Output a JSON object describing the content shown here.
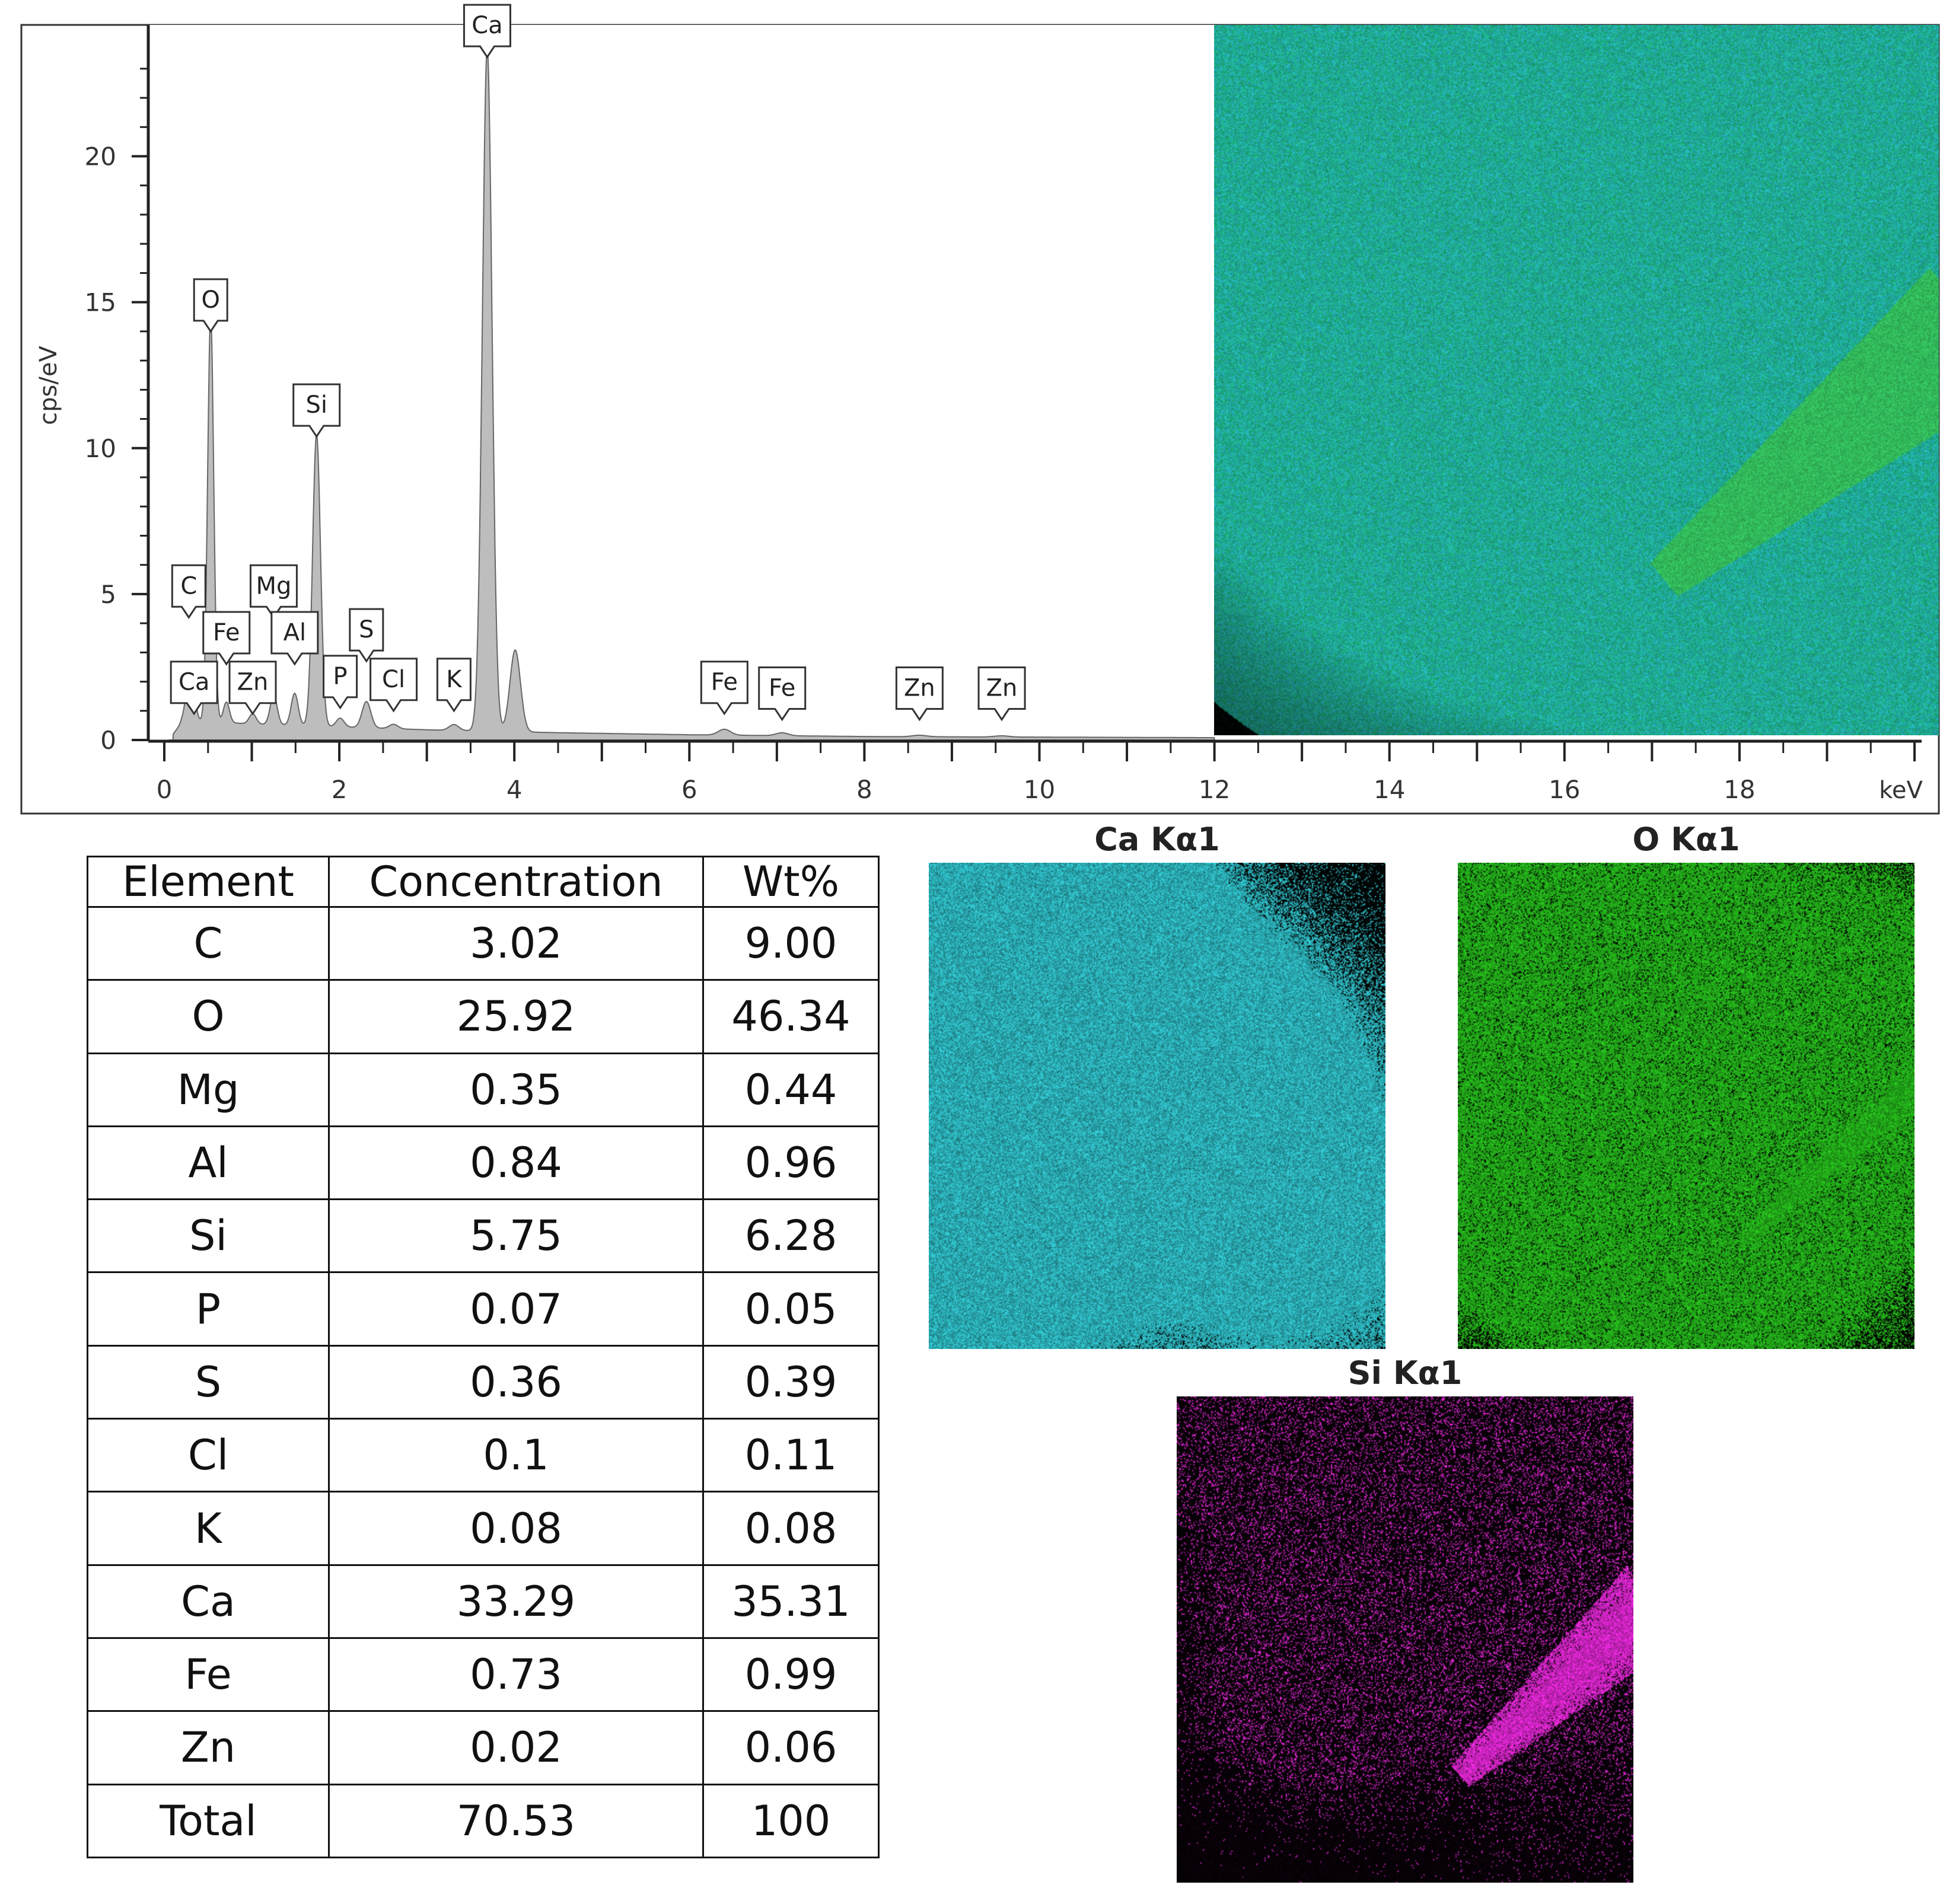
{
  "chart_data": {
    "type": "line",
    "xlabel": "keV",
    "ylabel": "cps/eV",
    "xlim": [
      -0.2,
      20.2
    ],
    "ylim": [
      0,
      24.5
    ],
    "x_ticks": [
      "0",
      "2",
      "4",
      "6",
      "8",
      "10",
      "12",
      "14",
      "16",
      "18"
    ],
    "y_ticks": [
      "0",
      "5",
      "10",
      "15",
      "20"
    ],
    "fill": "area",
    "baseline": [
      [
        0.1,
        0.2
      ],
      [
        0.2,
        0.6
      ],
      [
        0.4,
        0.65
      ],
      [
        1.0,
        0.55
      ],
      [
        2.0,
        0.45
      ],
      [
        3.0,
        0.35
      ],
      [
        4.5,
        0.25
      ],
      [
        6.0,
        0.18
      ],
      [
        8.0,
        0.12
      ],
      [
        10.0,
        0.1
      ],
      [
        12.0,
        0.08
      ]
    ],
    "peaks": [
      {
        "element": "C",
        "energy": 0.28,
        "height": 1.3,
        "width": 0.04
      },
      {
        "element": "Ca",
        "energy": 0.34,
        "height": 0.6,
        "width": 0.03
      },
      {
        "element": "O",
        "energy": 0.53,
        "height": 13.9,
        "width": 0.035
      },
      {
        "element": "Fe",
        "energy": 0.71,
        "height": 0.7,
        "width": 0.035
      },
      {
        "element": "Zn",
        "energy": 1.01,
        "height": 0.35,
        "width": 0.04
      },
      {
        "element": "Mg",
        "energy": 1.25,
        "height": 1.0,
        "width": 0.04
      },
      {
        "element": "Al",
        "energy": 1.49,
        "height": 1.1,
        "width": 0.04
      },
      {
        "element": "Si",
        "energy": 1.74,
        "height": 10.0,
        "width": 0.045
      },
      {
        "element": "P",
        "energy": 2.01,
        "height": 0.3,
        "width": 0.045
      },
      {
        "element": "S",
        "energy": 2.31,
        "height": 0.9,
        "width": 0.05
      },
      {
        "element": "Cl",
        "energy": 2.62,
        "height": 0.15,
        "width": 0.05
      },
      {
        "element": "K",
        "energy": 3.31,
        "height": 0.2,
        "width": 0.055
      },
      {
        "element": "Ca",
        "energy": 3.69,
        "height": 23.4,
        "width": 0.055
      },
      {
        "element": "Ca",
        "energy": 4.01,
        "height": 2.8,
        "width": 0.06
      },
      {
        "element": "Fe",
        "energy": 6.4,
        "height": 0.2,
        "width": 0.07
      },
      {
        "element": "Fe",
        "energy": 7.06,
        "height": 0.1,
        "width": 0.07
      },
      {
        "element": "Zn",
        "energy": 8.63,
        "height": 0.05,
        "width": 0.08
      },
      {
        "element": "Zn",
        "energy": 9.57,
        "height": 0.04,
        "width": 0.08
      }
    ],
    "peak_labels": [
      {
        "text": "Ca",
        "energy": 3.69,
        "level": 23.4
      },
      {
        "text": "O",
        "energy": 0.53,
        "level": 14.0
      },
      {
        "text": "Si",
        "energy": 1.74,
        "level": 10.4
      },
      {
        "text": "C",
        "energy": 0.28,
        "level": 4.2
      },
      {
        "text": "Mg",
        "energy": 1.25,
        "level": 4.2
      },
      {
        "text": "Fe",
        "energy": 0.71,
        "level": 2.6
      },
      {
        "text": "Al",
        "energy": 1.49,
        "level": 2.6
      },
      {
        "text": "S",
        "energy": 2.31,
        "level": 2.7
      },
      {
        "text": "Ca",
        "energy": 0.34,
        "level": 0.9
      },
      {
        "text": "Zn",
        "energy": 1.01,
        "level": 0.9
      },
      {
        "text": "P",
        "energy": 2.01,
        "level": 1.1
      },
      {
        "text": "Cl",
        "energy": 2.62,
        "level": 1.0
      },
      {
        "text": "K",
        "energy": 3.31,
        "level": 1.0
      },
      {
        "text": "Fe",
        "energy": 6.4,
        "level": 0.9
      },
      {
        "text": "Fe",
        "energy": 7.06,
        "level": 0.7
      },
      {
        "text": "Zn",
        "energy": 8.63,
        "level": 0.7
      },
      {
        "text": "Zn",
        "energy": 9.57,
        "level": 0.7
      }
    ]
  },
  "table": {
    "headers": [
      "Element",
      "Concentration",
      "Wt%"
    ],
    "rows": [
      [
        "C",
        "3.02",
        "9.00"
      ],
      [
        "O",
        "25.92",
        "46.34"
      ],
      [
        "Mg",
        "0.35",
        "0.44"
      ],
      [
        "Al",
        "0.84",
        "0.96"
      ],
      [
        "Si",
        "5.75",
        "6.28"
      ],
      [
        "P",
        "0.07",
        "0.05"
      ],
      [
        "S",
        "0.36",
        "0.39"
      ],
      [
        "Cl",
        "0.1",
        "0.11"
      ],
      [
        "K",
        "0.08",
        "0.08"
      ],
      [
        "Ca",
        "33.29",
        "35.31"
      ],
      [
        "Fe",
        "0.73",
        "0.99"
      ],
      [
        "Zn",
        "0.02",
        "0.06"
      ],
      [
        "Total",
        "70.53",
        "100"
      ]
    ]
  },
  "maps": [
    {
      "title": "Ca Kα1",
      "color": "#35d6e0"
    },
    {
      "title": "O Kα1",
      "color": "#2ad11f"
    },
    {
      "title": "Si Kα1",
      "color": "#ff2cf0"
    }
  ],
  "composite_colors": [
    "#1fbf8a",
    "#28c4c8",
    "#3ad86a"
  ]
}
